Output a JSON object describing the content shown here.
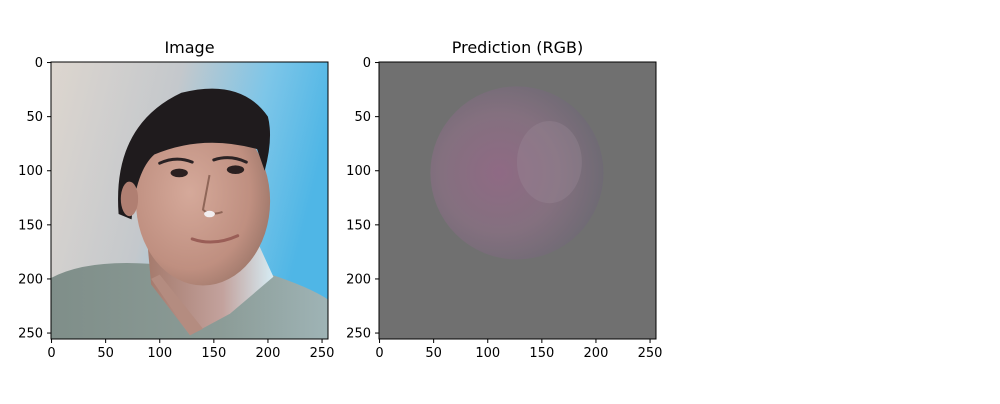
{
  "chart_data": [
    {
      "type": "image",
      "title": "Image",
      "xlim": [
        0,
        255
      ],
      "ylim": [
        255,
        0
      ],
      "xticks": [
        0,
        50,
        100,
        150,
        200,
        250
      ],
      "yticks": [
        0,
        50,
        100,
        150,
        200,
        250
      ],
      "content": "portrait photo: dark-haired man, light grey t-shirt, blue-lit wall background"
    },
    {
      "type": "image",
      "title": "Prediction (RGB)",
      "xlim": [
        0,
        255
      ],
      "ylim": [
        255,
        0
      ],
      "xticks": [
        0,
        50,
        100,
        150,
        200,
        250
      ],
      "yticks": [
        0,
        50,
        100,
        150,
        200,
        250
      ],
      "background_color": "#707070",
      "sphere": {
        "cx": 127,
        "cy": 102,
        "r": 80,
        "color": "#7d6f7e"
      }
    }
  ],
  "colors": {
    "wall_light": "#d6d0ca",
    "wall_blue": "#57b9e6",
    "skin": "#c89a8c",
    "hair": "#201c1e",
    "shirt": "#8a9a94",
    "prediction_bg": "#707070",
    "sphere_center": "#8e6b83",
    "sphere_edge": "#6e6a74"
  }
}
